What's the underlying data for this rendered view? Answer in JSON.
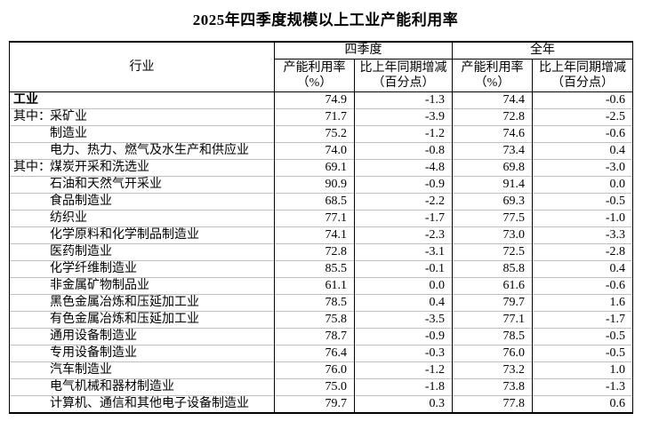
{
  "page_title": "2025年四季度规模以上工业产能利用率",
  "table": {
    "col_industry": "行业",
    "group_q4": "四季度",
    "group_year": "全年",
    "sub_rate_line1": "产能利用率",
    "sub_rate_line2": "（%）",
    "sub_change_line1": "比上年同期增减",
    "sub_change_line2": "（百分点）",
    "rows": [
      {
        "prefix": "",
        "name": "工业",
        "style": "bold",
        "q4_rate": "74.9",
        "q4_chg": "-1.3",
        "yr_rate": "74.4",
        "yr_chg": "-0.6"
      },
      {
        "prefix": "其中：",
        "name": "采矿业",
        "style": "indent",
        "q4_rate": "71.7",
        "q4_chg": "-3.9",
        "yr_rate": "72.8",
        "yr_chg": "-2.5"
      },
      {
        "prefix": "",
        "name": "制造业",
        "style": "indent",
        "q4_rate": "75.2",
        "q4_chg": "-1.2",
        "yr_rate": "74.6",
        "yr_chg": "-0.6"
      },
      {
        "prefix": "",
        "name": "电力、热力、燃气及水生产和供应业",
        "style": "indent",
        "q4_rate": "74.0",
        "q4_chg": "-0.8",
        "yr_rate": "73.4",
        "yr_chg": "0.4"
      },
      {
        "prefix": "其中：",
        "name": "煤炭开采和洗选业",
        "style": "indent",
        "q4_rate": "69.1",
        "q4_chg": "-4.8",
        "yr_rate": "69.8",
        "yr_chg": "-3.0"
      },
      {
        "prefix": "",
        "name": "石油和天然气开采业",
        "style": "indent",
        "q4_rate": "90.9",
        "q4_chg": "-0.9",
        "yr_rate": "91.4",
        "yr_chg": "0.0"
      },
      {
        "prefix": "",
        "name": "食品制造业",
        "style": "indent",
        "q4_rate": "68.5",
        "q4_chg": "-2.2",
        "yr_rate": "69.3",
        "yr_chg": "-0.5"
      },
      {
        "prefix": "",
        "name": "纺织业",
        "style": "indent",
        "q4_rate": "77.1",
        "q4_chg": "-1.7",
        "yr_rate": "77.5",
        "yr_chg": "-1.0"
      },
      {
        "prefix": "",
        "name": "化学原料和化学制品制造业",
        "style": "indent",
        "q4_rate": "74.1",
        "q4_chg": "-2.3",
        "yr_rate": "73.0",
        "yr_chg": "-3.3"
      },
      {
        "prefix": "",
        "name": "医药制造业",
        "style": "indent",
        "q4_rate": "72.8",
        "q4_chg": "-3.1",
        "yr_rate": "72.5",
        "yr_chg": "-2.8"
      },
      {
        "prefix": "",
        "name": "化学纤维制造业",
        "style": "indent",
        "q4_rate": "85.5",
        "q4_chg": "-0.1",
        "yr_rate": "85.8",
        "yr_chg": "0.4"
      },
      {
        "prefix": "",
        "name": "非金属矿物制品业",
        "style": "indent",
        "q4_rate": "61.1",
        "q4_chg": "0.0",
        "yr_rate": "61.6",
        "yr_chg": "-0.6"
      },
      {
        "prefix": "",
        "name": "黑色金属冶炼和压延加工业",
        "style": "indent",
        "q4_rate": "78.5",
        "q4_chg": "0.4",
        "yr_rate": "79.7",
        "yr_chg": "1.6"
      },
      {
        "prefix": "",
        "name": "有色金属冶炼和压延加工业",
        "style": "indent",
        "q4_rate": "75.8",
        "q4_chg": "-3.5",
        "yr_rate": "77.1",
        "yr_chg": "-1.7"
      },
      {
        "prefix": "",
        "name": "通用设备制造业",
        "style": "indent",
        "q4_rate": "78.7",
        "q4_chg": "-0.9",
        "yr_rate": "78.5",
        "yr_chg": "-0.5"
      },
      {
        "prefix": "",
        "name": "专用设备制造业",
        "style": "indent",
        "q4_rate": "76.4",
        "q4_chg": "-0.3",
        "yr_rate": "76.0",
        "yr_chg": "-0.5"
      },
      {
        "prefix": "",
        "name": "汽车制造业",
        "style": "indent",
        "q4_rate": "76.0",
        "q4_chg": "-1.2",
        "yr_rate": "73.2",
        "yr_chg": "1.0"
      },
      {
        "prefix": "",
        "name": "电气机械和器材制造业",
        "style": "indent",
        "q4_rate": "75.0",
        "q4_chg": "-1.8",
        "yr_rate": "73.8",
        "yr_chg": "-1.3"
      },
      {
        "prefix": "",
        "name": "计算机、通信和其他电子设备制造业",
        "style": "indent",
        "q4_rate": "79.7",
        "q4_chg": "0.3",
        "yr_rate": "77.8",
        "yr_chg": "0.6"
      }
    ]
  },
  "colors": {
    "text": "#000000",
    "outer_border": "#000000",
    "inner_grid": "#bfbfbf",
    "background": "#ffffff"
  }
}
